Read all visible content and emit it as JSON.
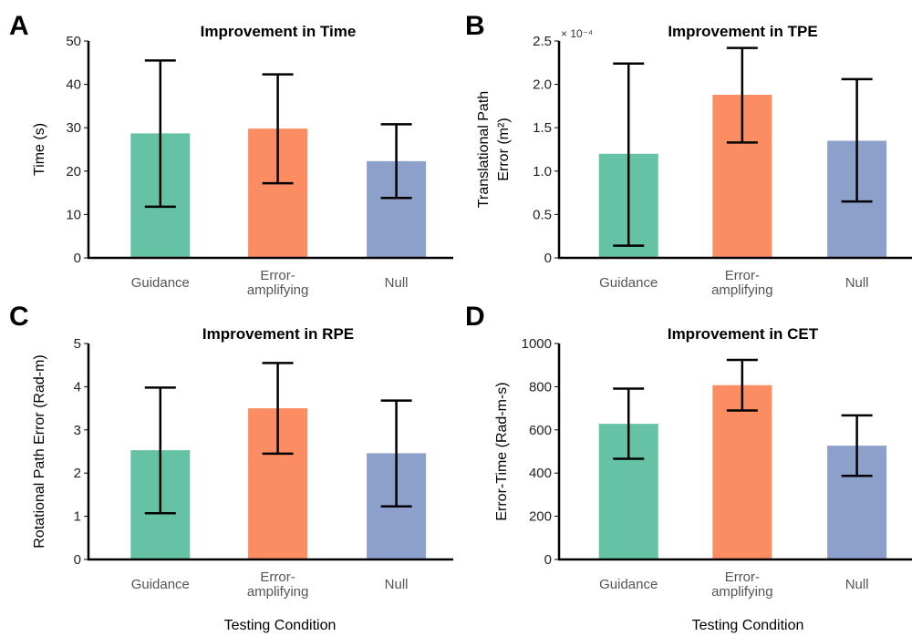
{
  "figure": {
    "shared_xlabel": "Testing Condition"
  },
  "colors": {
    "Guidance": "#66c2a5",
    "Error-amplifying": "#fc8d62",
    "Null": "#8da0cb"
  },
  "chart_data": [
    {
      "panel": "A",
      "type": "bar",
      "title": "Improvement in Time",
      "ylabel": "Time (s)",
      "xlabel": "",
      "categories": [
        "Guidance",
        "Error-amplifying",
        "Null"
      ],
      "category_lines": [
        [
          "Guidance"
        ],
        [
          "Error-",
          "amplifying"
        ],
        [
          "Null"
        ]
      ],
      "values": [
        28.7,
        29.8,
        22.3
      ],
      "error_low": [
        11.8,
        17.2,
        13.8
      ],
      "error_high": [
        45.5,
        42.3,
        30.8
      ],
      "ylim": [
        0,
        50
      ],
      "yticks": [
        0,
        10,
        20,
        30,
        40,
        50
      ],
      "ytick_labels": [
        "0",
        "10",
        "20",
        "30",
        "40",
        "50"
      ],
      "scale_note": ""
    },
    {
      "panel": "B",
      "type": "bar",
      "title": "Improvement in TPE",
      "ylabel": "Translational Path Error (m²)",
      "ylabel_lines": [
        "Translational Path",
        "Error (m²)"
      ],
      "xlabel": "",
      "categories": [
        "Guidance",
        "Error-amplifying",
        "Null"
      ],
      "category_lines": [
        [
          "Guidance"
        ],
        [
          "Error-",
          "amplifying"
        ],
        [
          "Null"
        ]
      ],
      "values": [
        0.00012,
        0.000188,
        0.000135
      ],
      "error_low": [
        1.4e-05,
        0.000133,
        6.5e-05
      ],
      "error_high": [
        0.000224,
        0.000242,
        0.000206
      ],
      "ylim": [
        0,
        0.00025
      ],
      "yticks": [
        0,
        5e-05,
        0.0001,
        0.00015,
        0.0002,
        0.00025
      ],
      "ytick_labels": [
        "0",
        "0.5",
        "1.0",
        "1.5",
        "2.0",
        "2.5"
      ],
      "scale_note": "× 10⁻⁴"
    },
    {
      "panel": "C",
      "type": "bar",
      "title": "Improvement in RPE",
      "ylabel": "Rotational Path Error (Rad-m)",
      "xlabel": "",
      "categories": [
        "Guidance",
        "Error-amplifying",
        "Null"
      ],
      "category_lines": [
        [
          "Guidance"
        ],
        [
          "Error-",
          "amplifying"
        ],
        [
          "Null"
        ]
      ],
      "values": [
        2.53,
        3.5,
        2.46
      ],
      "error_low": [
        1.07,
        2.45,
        1.23
      ],
      "error_high": [
        3.98,
        4.55,
        3.68
      ],
      "ylim": [
        0,
        5
      ],
      "yticks": [
        0,
        1,
        2,
        3,
        4,
        5
      ],
      "ytick_labels": [
        "0",
        "1",
        "2",
        "3",
        "4",
        "5"
      ],
      "scale_note": ""
    },
    {
      "panel": "D",
      "type": "bar",
      "title": "Improvement in CET",
      "ylabel": "Error-Time (Rad-m-s)",
      "xlabel": "",
      "categories": [
        "Guidance",
        "Error-amplifying",
        "Null"
      ],
      "category_lines": [
        [
          "Guidance"
        ],
        [
          "Error-",
          "amplifying"
        ],
        [
          "Null"
        ]
      ],
      "values": [
        628,
        807,
        527
      ],
      "error_low": [
        466,
        690,
        387
      ],
      "error_high": [
        791,
        924,
        667
      ],
      "ylim": [
        0,
        1000
      ],
      "yticks": [
        0,
        200,
        400,
        600,
        800,
        1000
      ],
      "ytick_labels": [
        "0",
        "200",
        "400",
        "600",
        "800",
        "1000"
      ],
      "scale_note": ""
    }
  ]
}
